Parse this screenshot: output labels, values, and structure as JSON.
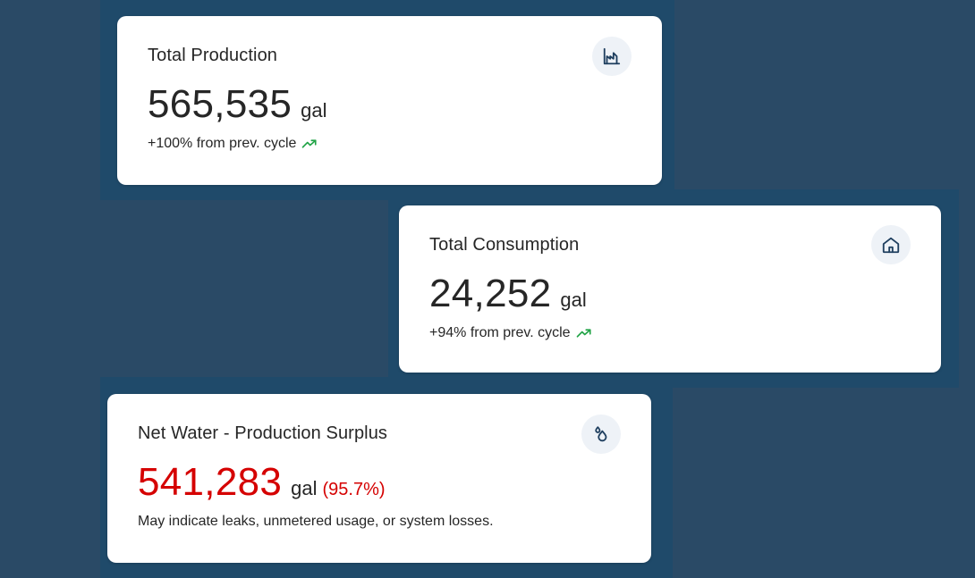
{
  "colors": {
    "background": "#2a4a66",
    "band": "#1f4a6a",
    "card": "#ffffff",
    "text": "#262626",
    "accent_red": "#d50000",
    "trend_green": "#22a447",
    "icon_stroke": "#1f3f5f",
    "icon_bg": "#eef2f7"
  },
  "cards": {
    "production": {
      "title": "Total Production",
      "value": "565,535",
      "unit": "gal",
      "change": "+100% from prev. cycle",
      "icon": "factory-icon",
      "trend_icon": "trending-up-icon"
    },
    "consumption": {
      "title": "Total Consumption",
      "value": "24,252",
      "unit": "gal",
      "change": "+94% from prev. cycle",
      "icon": "home-icon",
      "trend_icon": "trending-up-icon"
    },
    "net_water": {
      "title": "Net Water - Production Surplus",
      "value": "541,283",
      "unit": "gal",
      "percent": "(95.7%)",
      "note": "May indicate leaks, unmetered usage, or system losses.",
      "icon": "water-drops-icon"
    }
  }
}
